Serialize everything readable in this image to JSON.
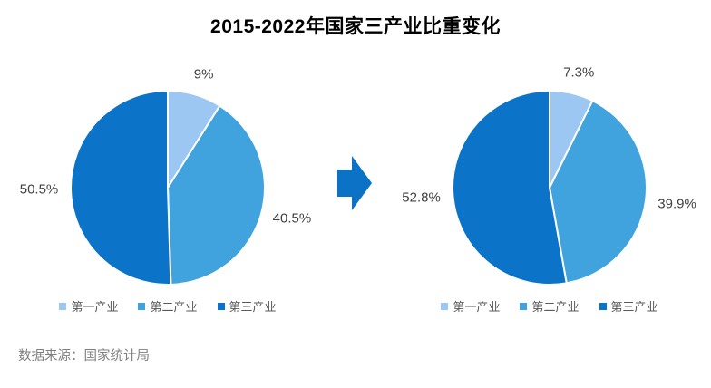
{
  "title": "2015-2022年国家三产业比重变化",
  "source": "数据来源：国家统计局",
  "arrow": {
    "color": "#0b72c6",
    "direction": "right"
  },
  "palette": {
    "primary": "#9cc7f2",
    "secondary": "#41a3de",
    "tertiary": "#0b73c8"
  },
  "chart_data": [
    {
      "type": "pie",
      "categories": [
        "第一产业",
        "第二产业",
        "第三产业"
      ],
      "values": [
        9,
        40.5,
        50.5
      ],
      "labels": [
        "9%",
        "40.5%",
        "50.5%"
      ],
      "colors": [
        "#9cc7f2",
        "#41a3de",
        "#0b73c8"
      ],
      "start_angle": "top",
      "direction": "clockwise",
      "legend_position": "bottom"
    },
    {
      "type": "pie",
      "categories": [
        "第一产业",
        "第二产业",
        "第三产业"
      ],
      "values": [
        7.3,
        39.9,
        52.8
      ],
      "labels": [
        "7.3%",
        "39.9%",
        "52.8%"
      ],
      "colors": [
        "#9cc7f2",
        "#41a3de",
        "#0b73c8"
      ],
      "start_angle": "top",
      "direction": "clockwise",
      "legend_position": "bottom"
    }
  ]
}
